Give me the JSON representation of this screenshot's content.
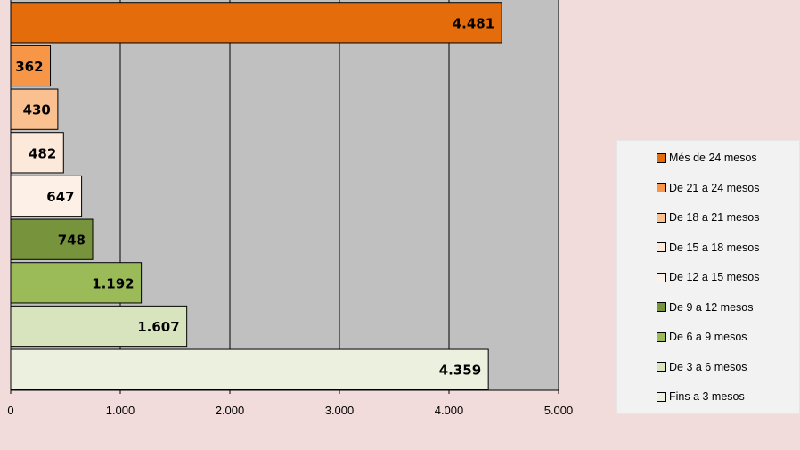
{
  "chart_data": {
    "type": "bar",
    "orientation": "horizontal",
    "categories": [
      "Fins a 3 mesos",
      "De 3 a 6 mesos",
      "De 6 a 9 mesos",
      "De 9 a 12 mesos",
      "De 12 a 15 mesos",
      "De 15 a 18 mesos",
      "De 18 a 21 mesos",
      "De 21 a 24 mesos",
      "Més de 24 mesos"
    ],
    "values": [
      4359,
      1607,
      1192,
      748,
      647,
      482,
      430,
      362,
      4481
    ],
    "value_labels": [
      "4.359",
      "1.607",
      "1.192",
      "748",
      "647",
      "482",
      "430",
      "362",
      "4.481"
    ],
    "colors": [
      "#ebf1de",
      "#d7e4bd",
      "#9bbb59",
      "#77933c",
      "#fdf0e6",
      "#fde9d9",
      "#fac090",
      "#f79646",
      "#e46c0a"
    ],
    "xlim": [
      0,
      5000
    ],
    "xticks": [
      0,
      1000,
      2000,
      3000,
      4000,
      5000
    ],
    "xtick_labels": [
      "0",
      "1.000",
      "2.000",
      "3.000",
      "4.000",
      "5.000"
    ],
    "grid": true,
    "plot_background": "#c0c0c0",
    "legend_position": "right",
    "legend": [
      "Més de 24 mesos",
      "De 21 a 24 mesos",
      "De 18 a 21 mesos",
      "De 15 a 18 mesos",
      "De 12 a 15 mesos",
      "De 9 a 12 mesos",
      "De 6 a 9 mesos",
      "De 3 a 6 mesos",
      "Fins a 3 mesos"
    ],
    "title": "",
    "xlabel": "",
    "ylabel": ""
  }
}
